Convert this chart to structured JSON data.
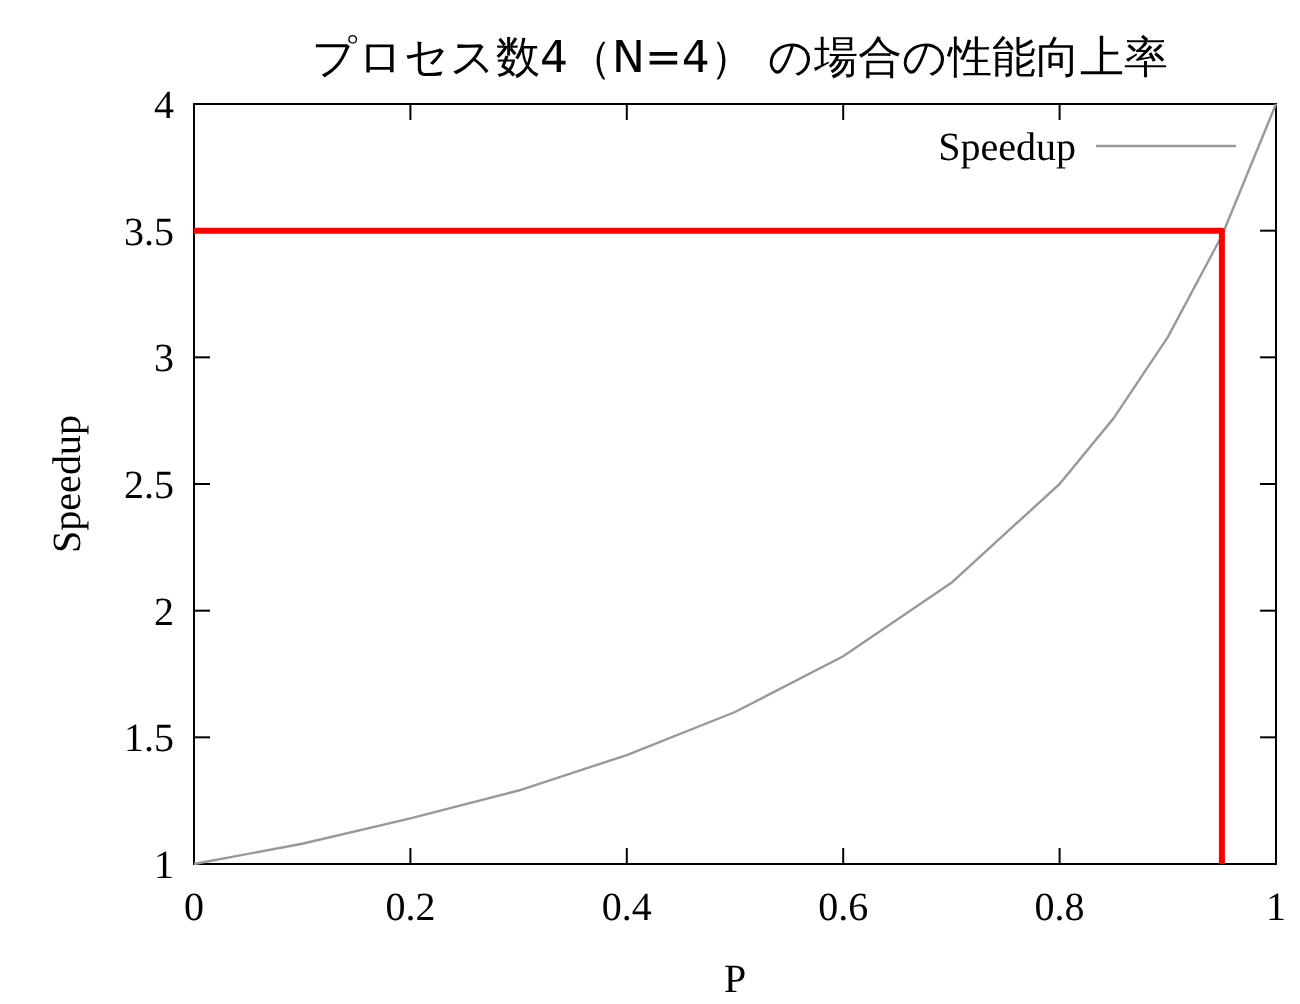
{
  "chart_data": {
    "type": "line",
    "title": "プロセス数4（N=4） の場合の性能向上率",
    "xlabel": "P",
    "ylabel": "Speedup",
    "xlim": [
      0,
      1
    ],
    "ylim": [
      1,
      4
    ],
    "xticks": [
      0,
      0.2,
      0.4,
      0.6,
      0.8,
      1
    ],
    "yticks": [
      1,
      1.5,
      2,
      2.5,
      3,
      3.5,
      4
    ],
    "grid": false,
    "legend": "top right",
    "series": [
      {
        "name": "Speedup",
        "color": "#999999",
        "x": [
          0,
          0.1,
          0.2,
          0.3,
          0.4,
          0.5,
          0.6,
          0.7,
          0.8,
          0.85,
          0.9,
          0.95,
          1
        ],
        "values": [
          1,
          1.08,
          1.18,
          1.29,
          1.43,
          1.6,
          1.82,
          2.11,
          2.5,
          2.76,
          3.08,
          3.48,
          4
        ]
      },
      {
        "color": "#ff0000",
        "x": [
          0,
          0.95,
          0.95
        ],
        "values": [
          3.5,
          3.5,
          1
        ]
      }
    ]
  }
}
